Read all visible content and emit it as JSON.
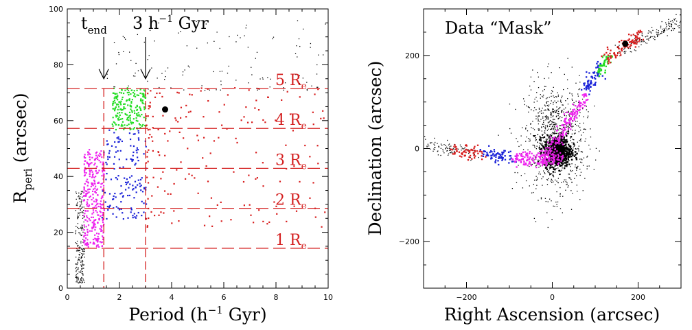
{
  "colors": {
    "red": "#d81e1e",
    "green": "#22dd22",
    "blue": "#1a22d8",
    "magenta": "#ee22ee",
    "black": "#000000",
    "guide": "#d42020"
  },
  "chart_data": [
    {
      "type": "scatter",
      "xlabel": "Period (h",
      "xlabel_sup": "−1",
      "xlabel_end": " Gyr)",
      "ylabel": "R",
      "ylabel_sub": "peri",
      "ylabel_end": " (arcsec)",
      "xlim": [
        0,
        10
      ],
      "ylim": [
        0,
        100
      ],
      "xticks": [
        "0",
        "2",
        "4",
        "6",
        "8",
        "10"
      ],
      "xtick_values": [
        0,
        2,
        4,
        6,
        8,
        10
      ],
      "yticks": [
        "0",
        "20",
        "40",
        "60",
        "80",
        "100"
      ],
      "ytick_values": [
        0,
        20,
        40,
        60,
        80,
        100
      ],
      "grid": false,
      "annotations": [
        {
          "text": "t",
          "sub": "end",
          "x": 1.4,
          "arrow_to_y": 75
        },
        {
          "text": "3 h",
          "sup": "−1",
          "end": " Gyr",
          "x": 3.0,
          "arrow_to_y": 75
        }
      ],
      "vertical_lines": [
        1.4,
        3.0
      ],
      "horizontal_lines": [
        {
          "y": 14.3,
          "label": "1 R",
          "sub": "e"
        },
        {
          "y": 28.6,
          "label": "2 R",
          "sub": "e"
        },
        {
          "y": 42.9,
          "label": "3 R",
          "sub": "e"
        },
        {
          "y": 57.2,
          "label": "4 R",
          "sub": "e"
        },
        {
          "y": 71.5,
          "label": "5 R",
          "sub": "e"
        }
      ],
      "series": [
        {
          "color": "black",
          "x_range": [
            0.3,
            0.65
          ],
          "y_range": [
            2,
            35
          ],
          "count": 220
        },
        {
          "color": "black",
          "x_range": [
            1.5,
            10
          ],
          "y_range": [
            71,
            96
          ],
          "count": 120
        },
        {
          "color": "magenta",
          "x_range": [
            0.6,
            1.4
          ],
          "y_range": [
            15,
            50
          ],
          "count": 320
        },
        {
          "color": "blue",
          "x_range": [
            1.3,
            3.0
          ],
          "y_range": [
            25,
            57
          ],
          "count": 150
        },
        {
          "color": "green",
          "x_range": [
            1.7,
            3.0
          ],
          "y_range": [
            57,
            72
          ],
          "count": 200
        },
        {
          "color": "red",
          "x_range": [
            3.0,
            10
          ],
          "y_range": [
            22,
            72
          ],
          "count": 180
        }
      ],
      "marker": {
        "x": 3.75,
        "y": 64,
        "color": "black"
      }
    },
    {
      "type": "scatter",
      "title": "Data “Mask”",
      "xlabel": "Right Ascension (arcsec)",
      "ylabel": "Declination (arcsec)",
      "xlim": [
        -300,
        300
      ],
      "ylim": [
        -300,
        300
      ],
      "xticks": [
        "−200",
        "0",
        "200"
      ],
      "xtick_values": [
        -200,
        0,
        200
      ],
      "yticks": [
        "−200",
        "0",
        "200"
      ],
      "ytick_values": [
        -200,
        0,
        200
      ],
      "grid": false,
      "series": [
        {
          "color": "black",
          "desc": "central cloud",
          "cx": 5,
          "cy": 20,
          "sx": 35,
          "sy": 60,
          "count": 900
        },
        {
          "color": "black",
          "desc": "core",
          "cx": 10,
          "cy": -5,
          "sx": 16,
          "sy": 16,
          "count": 600
        },
        {
          "color": "black",
          "desc": "left stream",
          "path": [
            [
              -300,
              5
            ],
            [
              -180,
              -5
            ]
          ],
          "count": 90
        },
        {
          "color": "black",
          "desc": "upper stream",
          "path": [
            [
              150,
              210
            ],
            [
              300,
              275
            ]
          ],
          "count": 160
        },
        {
          "color": "red",
          "path": [
            [
              -240,
              -5
            ],
            [
              -160,
              -5
            ]
          ],
          "count": 60
        },
        {
          "color": "blue",
          "path": [
            [
              -160,
              -10
            ],
            [
              -90,
              -20
            ]
          ],
          "count": 70
        },
        {
          "color": "magenta",
          "path": [
            [
              -90,
              -20
            ],
            [
              20,
              -20
            ]
          ],
          "count": 150
        },
        {
          "color": "magenta",
          "path": [
            [
              -30,
              -30
            ],
            [
              80,
              120
            ]
          ],
          "count": 180
        },
        {
          "color": "blue",
          "path": [
            [
              75,
              130
            ],
            [
              110,
              170
            ]
          ],
          "count": 70
        },
        {
          "color": "green",
          "path": [
            [
              105,
              165
            ],
            [
              130,
              200
            ]
          ],
          "count": 50
        },
        {
          "color": "red",
          "path": [
            [
              125,
              195
            ],
            [
              205,
              245
            ]
          ],
          "count": 90
        }
      ],
      "marker": {
        "x": 170,
        "y": 225,
        "color": "black"
      }
    }
  ]
}
